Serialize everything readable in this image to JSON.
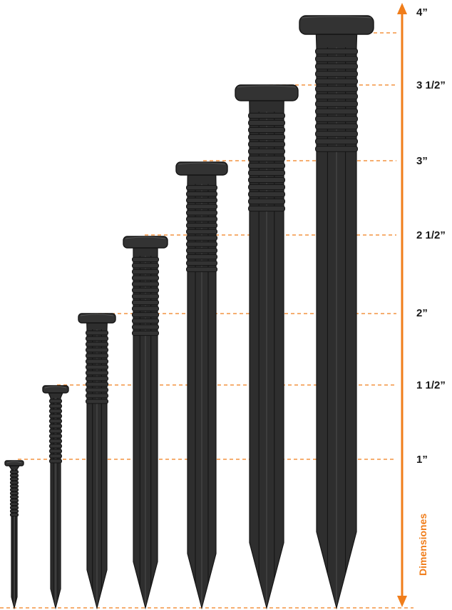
{
  "colors": {
    "accent": "#f07d1a",
    "nail_body": "#2e2e2e",
    "nail_head": "#333333",
    "nail_edge": "#151515",
    "nail_highlight": "#555555",
    "text": "#1a1a1a"
  },
  "dimension_title": "Dimensiones",
  "size_labels": [
    "4”",
    "3 1/2”",
    "3”",
    "2 1/2”",
    "2”",
    "1 1/2”",
    "1”"
  ],
  "nails": [
    {
      "size": "1”",
      "length_in": 1.0
    },
    {
      "size": "1 1/2”",
      "length_in": 1.5
    },
    {
      "size": "2”",
      "length_in": 2.0
    },
    {
      "size": "2 1/2”",
      "length_in": 2.5
    },
    {
      "size": "3”",
      "length_in": 3.0
    },
    {
      "size": "3 1/2”",
      "length_in": 3.5
    },
    {
      "size": "4”",
      "length_in": 4.0
    }
  ]
}
